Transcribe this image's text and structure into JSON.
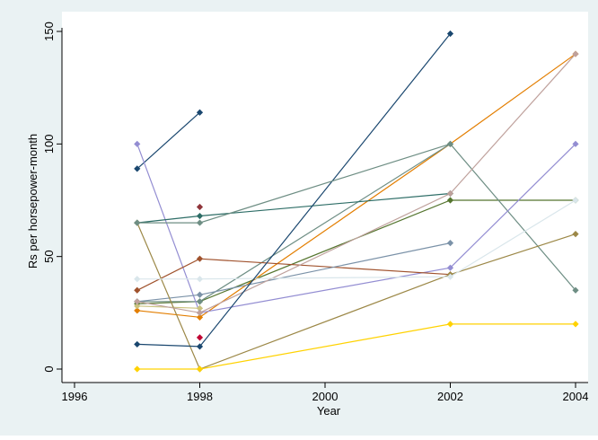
{
  "chart_data": {
    "type": "line",
    "title": "",
    "xlabel": "Year",
    "ylabel": "Rs per horsepower-month",
    "xlim": [
      1996,
      2004
    ],
    "ylim": [
      0,
      150
    ],
    "xticks": [
      1996,
      1998,
      2000,
      2002,
      2004
    ],
    "yticks": [
      0,
      50,
      100,
      150
    ],
    "grid": false,
    "legend": "none",
    "colors": {
      "outer_background": "#eaf2f3",
      "plot_background": "#ffffff",
      "axis": "#000000"
    },
    "series": [
      {
        "color": "#1a476f",
        "points": [
          [
            1997,
            89
          ],
          [
            1998,
            114
          ]
        ]
      },
      {
        "color": "#90353b",
        "points": [
          [
            1998,
            72
          ]
        ]
      },
      {
        "color": "#55752f",
        "points": [
          [
            1997,
            29
          ],
          [
            1998,
            30
          ],
          [
            2002,
            75
          ],
          [
            2004,
            75
          ]
        ]
      },
      {
        "color": "#e37e00",
        "points": [
          [
            1997,
            26
          ],
          [
            1998,
            23
          ],
          [
            2002,
            100
          ],
          [
            2004,
            140
          ]
        ]
      },
      {
        "color": "#6e8e84",
        "points": [
          [
            1997,
            30
          ],
          [
            1998,
            30
          ],
          [
            2002,
            100
          ],
          [
            2004,
            35
          ]
        ]
      },
      {
        "color": "#c10534",
        "points": [
          [
            1998,
            14
          ]
        ]
      },
      {
        "color": "#938dd2",
        "points": [
          [
            1997,
            100
          ],
          [
            1998,
            25
          ],
          [
            2002,
            45
          ],
          [
            2004,
            100
          ]
        ]
      },
      {
        "color": "#cac27e",
        "points": [
          [
            1997,
            28
          ],
          [
            1998,
            27
          ]
        ]
      },
      {
        "color": "#a0522d",
        "points": [
          [
            1997,
            35
          ],
          [
            1998,
            49
          ],
          [
            2002,
            42
          ]
        ]
      },
      {
        "color": "#7b92a8",
        "points": [
          [
            1997,
            30
          ],
          [
            1998,
            33
          ],
          [
            2002,
            56
          ]
        ]
      },
      {
        "color": "#2d6d66",
        "points": [
          [
            1997,
            65
          ],
          [
            1998,
            68
          ],
          [
            2002,
            78
          ]
        ]
      },
      {
        "color": "#9c8847",
        "points": [
          [
            1997,
            65
          ],
          [
            1998,
            0
          ],
          [
            2002,
            42
          ],
          [
            2004,
            60
          ]
        ]
      },
      {
        "color": "#bfa19c",
        "points": [
          [
            1997,
            30
          ],
          [
            1998,
            25
          ],
          [
            2002,
            78
          ],
          [
            2004,
            140
          ]
        ]
      },
      {
        "color": "#ffd200",
        "points": [
          [
            1997,
            0
          ],
          [
            1998,
            0
          ],
          [
            2002,
            20
          ],
          [
            2004,
            20
          ]
        ]
      },
      {
        "color": "#d9e6eb",
        "points": [
          [
            1997,
            40
          ],
          [
            1998,
            40
          ],
          [
            2002,
            41
          ],
          [
            2004,
            75
          ]
        ]
      },
      {
        "color": "#1a476f",
        "points": [
          [
            1997,
            11
          ],
          [
            1998,
            10
          ],
          [
            2002,
            149
          ]
        ]
      },
      {
        "color": "#6e8e84",
        "points": [
          [
            1997,
            65
          ],
          [
            1998,
            65
          ],
          [
            2002,
            100
          ]
        ]
      }
    ]
  }
}
